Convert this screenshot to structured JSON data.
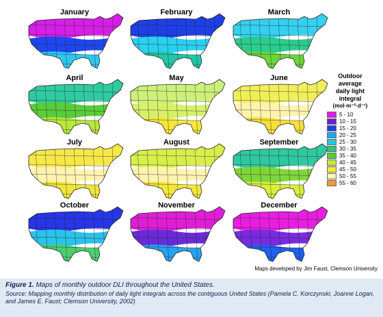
{
  "maps": [
    {
      "month": "January",
      "south": "#2ec8f0",
      "mid": "#1f47f0",
      "north": "#d61fe6"
    },
    {
      "month": "February",
      "south": "#20c7a8",
      "mid": "#2ad0f0",
      "north": "#1f3fe6"
    },
    {
      "month": "March",
      "south": "#6ad63a",
      "mid": "#2ccc8c",
      "north": "#36d0f0"
    },
    {
      "month": "April",
      "south": "#b7e83a",
      "mid": "#58cc3a",
      "north": "#2fcaa0"
    },
    {
      "month": "May",
      "south": "#f5e83a",
      "mid": "#d8ef6a",
      "north": "#cdf07a"
    },
    {
      "month": "June",
      "south": "#f6e03a",
      "mid": "#fff3b0",
      "north": "#f0ef5a"
    },
    {
      "month": "July",
      "south": "#f0e43a",
      "mid": "#fff3b0",
      "north": "#f6e848"
    },
    {
      "month": "August",
      "south": "#f3e63a",
      "mid": "#fff3b0",
      "north": "#d8ee4a"
    },
    {
      "month": "September",
      "south": "#d9ee3a",
      "mid": "#7fd63a",
      "north": "#2fc8a0"
    },
    {
      "month": "October",
      "south": "#4ad070",
      "mid": "#2ac2ea",
      "north": "#2636e6"
    },
    {
      "month": "November",
      "south": "#2aa0f0",
      "mid": "#6a2ad8",
      "north": "#e01ed6"
    },
    {
      "month": "December",
      "south": "#1f60f0",
      "mid": "#7a2ae0",
      "north": "#e81fe0"
    }
  ],
  "legend": {
    "title_lines": [
      "Outdoor",
      "average",
      "daily light",
      "integral"
    ],
    "units": "(mol·m⁻²·d⁻¹)",
    "items": [
      {
        "label": "5 - 10",
        "color": "#e01ee6"
      },
      {
        "label": "10 - 15",
        "color": "#6a1fd8"
      },
      {
        "label": "15 - 20",
        "color": "#1f3fe6"
      },
      {
        "label": "20 - 25",
        "color": "#1fa8f0"
      },
      {
        "label": "25 - 30",
        "color": "#22c8d8"
      },
      {
        "label": "30 - 35",
        "color": "#2cc880"
      },
      {
        "label": "35 - 40",
        "color": "#58cc3a"
      },
      {
        "label": "40 - 45",
        "color": "#c8ea3a"
      },
      {
        "label": "45 - 50",
        "color": "#f5e83a"
      },
      {
        "label": "50 - 55",
        "color": "#fff3b0"
      },
      {
        "label": "55 - 60",
        "color": "#f29a3a"
      }
    ]
  },
  "credit": "Maps developed by Jim Faust, Clemson University",
  "caption": {
    "label": "Figure 1.",
    "title": "Maps of monthly outdoor DLI throughout the United States.",
    "source": "Source: Mapping monthly distribution of daily light integrals across the contiguous United States (Pamela C. Korczynski, Joanne Logan, and James E. Faust; Clemson University, 2002)"
  }
}
